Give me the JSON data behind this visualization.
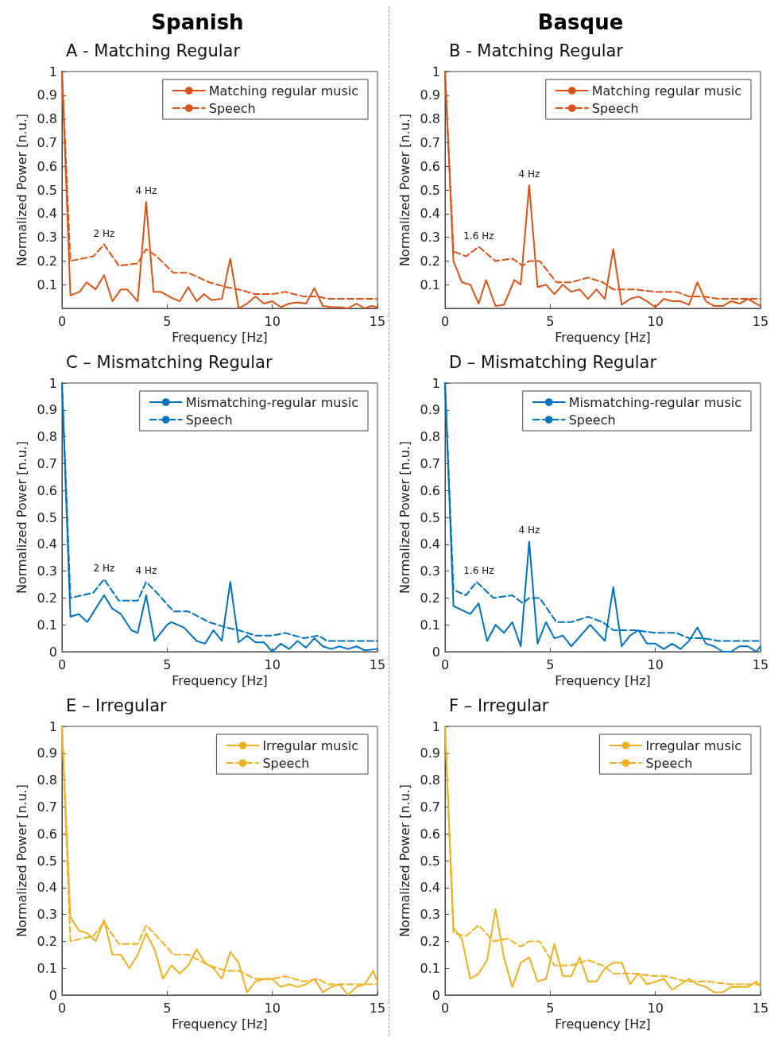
{
  "chart_data": [
    {
      "type": "line",
      "title": "A - Matching Regular",
      "xlabel": "Frequency [Hz]",
      "ylabel": "Normalized Power [n.u.]",
      "annotations": [
        "Spanish",
        {
          "text": "2 Hz",
          "x": 2,
          "y": 0.27
        },
        {
          "text": "4 Hz",
          "x": 4,
          "y": 0.45
        }
      ],
      "xlim": [
        0,
        15
      ],
      "ylim": [
        0,
        1
      ],
      "xticks": [
        0,
        5,
        10,
        15
      ],
      "yticks": [
        0.1,
        0.2,
        0.3,
        0.4,
        0.5,
        0.6,
        0.7,
        0.8,
        0.9,
        1
      ],
      "grid": false,
      "legend": "top right",
      "marker": "none",
      "series": [
        {
          "name": "Matching regular music",
          "color": "#d95319",
          "line_style": "solid",
          "x": [
            0,
            0.4,
            0.84,
            1.17,
            1.6,
            2,
            2.4,
            2.8,
            3.1,
            3.6,
            4,
            4.35,
            4.7,
            5.2,
            5.6,
            6,
            6.4,
            6.75,
            7.1,
            7.6,
            8,
            8.4,
            8.8,
            9.2,
            9.6,
            10,
            10.4,
            10.8,
            11.2,
            11.6,
            12,
            12.4,
            12.85,
            13.2,
            13.6,
            14,
            14.4,
            14.7,
            15
          ],
          "values": [
            1,
            0.055,
            0.07,
            0.11,
            0.08,
            0.14,
            0.03,
            0.08,
            0.08,
            0.03,
            0.45,
            0.07,
            0.07,
            0.045,
            0.03,
            0.09,
            0.03,
            0.06,
            0.035,
            0.04,
            0.21,
            0,
            0.02,
            0.05,
            0.02,
            0.03,
            0.005,
            0.02,
            0.025,
            0.02,
            0.085,
            0.01,
            0.005,
            0.005,
            0,
            0.02,
            0,
            0.01,
            0.005
          ]
        },
        {
          "name": "Speech",
          "color": "#d95319",
          "line_style": "dashed",
          "x": [
            0,
            0.4,
            1.5,
            2,
            2.7,
            3.6,
            4,
            4.5,
            5.3,
            6,
            7,
            7.8,
            8.4,
            9.2,
            10,
            10.6,
            11.5,
            12.2,
            12.6,
            15
          ],
          "values": [
            1,
            0.2,
            0.22,
            0.27,
            0.18,
            0.19,
            0.25,
            0.22,
            0.15,
            0.15,
            0.11,
            0.09,
            0.08,
            0.06,
            0.06,
            0.07,
            0.05,
            0.05,
            0.04,
            0.04
          ]
        }
      ]
    },
    {
      "type": "line",
      "title": "B - Matching Regular",
      "xlabel": "Frequency [Hz]",
      "ylabel": "Normalized Power [n.u.]",
      "annotations": [
        "Basque",
        {
          "text": "1.6 Hz",
          "x": 1.6,
          "y": 0.26
        },
        {
          "text": "4 Hz",
          "x": 4,
          "y": 0.52
        }
      ],
      "xlim": [
        0,
        15
      ],
      "ylim": [
        0,
        1
      ],
      "xticks": [
        0,
        5,
        10,
        15
      ],
      "yticks": [
        0.1,
        0.2,
        0.3,
        0.4,
        0.5,
        0.6,
        0.7,
        0.8,
        0.9,
        1
      ],
      "grid": false,
      "legend": "top right",
      "marker": "none",
      "series": [
        {
          "name": "Matching regular music",
          "color": "#d95319",
          "line_style": "solid",
          "x": [
            0,
            0.4,
            0.8,
            1.2,
            1.6,
            1.95,
            2.4,
            2.8,
            3.3,
            3.6,
            4,
            4.4,
            4.8,
            5.2,
            5.6,
            6,
            6.4,
            6.8,
            7.2,
            7.6,
            8,
            8.4,
            8.8,
            9.2,
            9.6,
            10,
            10.4,
            10.8,
            11.2,
            11.6,
            12,
            12.4,
            12.8,
            13.2,
            13.6,
            14,
            14.4,
            15
          ],
          "values": [
            1,
            0.2,
            0.11,
            0.1,
            0.02,
            0.12,
            0.01,
            0.015,
            0.12,
            0.1,
            0.52,
            0.09,
            0.1,
            0.06,
            0.1,
            0.07,
            0.08,
            0.04,
            0.08,
            0.04,
            0.25,
            0.015,
            0.04,
            0.05,
            0.03,
            0.005,
            0.04,
            0.03,
            0.03,
            0.015,
            0.11,
            0.03,
            0.01,
            0.01,
            0.03,
            0.02,
            0.04,
            0.01
          ]
        },
        {
          "name": "Speech",
          "color": "#d95319",
          "line_style": "dashed",
          "x": [
            0,
            0.4,
            1,
            1.6,
            2.4,
            3.2,
            3.7,
            4,
            4.5,
            5.3,
            6,
            6.8,
            7.5,
            8,
            9,
            10,
            11,
            11.6,
            12.3,
            13,
            14,
            15
          ],
          "values": [
            1,
            0.24,
            0.22,
            0.26,
            0.2,
            0.21,
            0.18,
            0.2,
            0.2,
            0.11,
            0.11,
            0.13,
            0.11,
            0.08,
            0.08,
            0.07,
            0.07,
            0.05,
            0.05,
            0.04,
            0.04,
            0.04
          ]
        }
      ]
    },
    {
      "type": "line",
      "title": "C – Mismatching Regular",
      "xlabel": "Frequency [Hz]",
      "ylabel": "Normalized Power [n.u.]",
      "annotations": [
        {
          "text": "2 Hz",
          "x": 2,
          "y": 0.27
        },
        {
          "text": "4 Hz",
          "x": 4,
          "y": 0.26
        }
      ],
      "xlim": [
        0,
        15
      ],
      "ylim": [
        0,
        1
      ],
      "xticks": [
        0,
        5,
        10,
        15
      ],
      "yticks": [
        0,
        0.1,
        0.2,
        0.3,
        0.4,
        0.5,
        0.6,
        0.7,
        0.8,
        0.9,
        1
      ],
      "grid": false,
      "legend": "top right",
      "marker": "none",
      "series": [
        {
          "name": "Mismatching-regular music",
          "color": "#0072bd",
          "line_style": "solid",
          "x": [
            0,
            0.4,
            0.8,
            1.2,
            2,
            2.4,
            2.8,
            3.3,
            3.6,
            4,
            4.4,
            5,
            5.2,
            5.8,
            6.4,
            6.8,
            7.2,
            7.6,
            8,
            8.4,
            8.8,
            9.2,
            9.6,
            10,
            10.4,
            10.8,
            11.2,
            11.6,
            12,
            12.4,
            12.8,
            13.2,
            13.6,
            14,
            14.4,
            15
          ],
          "values": [
            1,
            0.13,
            0.14,
            0.11,
            0.21,
            0.16,
            0.14,
            0.08,
            0.07,
            0.21,
            0.04,
            0.1,
            0.11,
            0.09,
            0.04,
            0.03,
            0.08,
            0.04,
            0.26,
            0.035,
            0.06,
            0.035,
            0.035,
            0,
            0.03,
            0.01,
            0.04,
            0.015,
            0.05,
            0.02,
            0.01,
            0.02,
            0.01,
            0.02,
            0.005,
            0.01
          ]
        },
        {
          "name": "Speech",
          "color": "#0072bd",
          "line_style": "dashed",
          "x": [
            0,
            0.4,
            1.5,
            2,
            2.7,
            3.6,
            4,
            4.5,
            5.3,
            6,
            7,
            7.8,
            8.4,
            9.2,
            10,
            10.6,
            11.5,
            12.2,
            12.6,
            15
          ],
          "values": [
            1,
            0.2,
            0.22,
            0.27,
            0.19,
            0.19,
            0.26,
            0.22,
            0.15,
            0.15,
            0.11,
            0.09,
            0.08,
            0.06,
            0.06,
            0.07,
            0.05,
            0.06,
            0.04,
            0.04
          ]
        }
      ]
    },
    {
      "type": "line",
      "title": "D – Mismatching Regular",
      "xlabel": "Frequency [Hz]",
      "ylabel": "Normalized Power [n.u.]",
      "annotations": [
        {
          "text": "1.6 Hz",
          "x": 1.6,
          "y": 0.26
        },
        {
          "text": "4 Hz",
          "x": 4,
          "y": 0.41
        }
      ],
      "xlim": [
        0,
        15
      ],
      "ylim": [
        0,
        1
      ],
      "xticks": [
        0,
        5,
        10,
        15
      ],
      "yticks": [
        0,
        0.1,
        0.2,
        0.3,
        0.4,
        0.5,
        0.6,
        0.7,
        0.8,
        0.9,
        1
      ],
      "grid": false,
      "legend": "top right",
      "marker": "none",
      "series": [
        {
          "name": "Mismatching-regular music",
          "color": "#0072bd",
          "line_style": "solid",
          "x": [
            0,
            0.4,
            1.2,
            1.6,
            2,
            2.4,
            2.8,
            3.2,
            3.6,
            4,
            4.4,
            4.8,
            5.2,
            5.6,
            6,
            6.9,
            7.6,
            8,
            8.4,
            8.8,
            9.2,
            9.6,
            10,
            10.4,
            10.8,
            11.2,
            11.6,
            12,
            12.4,
            12.8,
            13.2,
            13.6,
            14,
            14.4,
            14.8,
            15
          ],
          "values": [
            1,
            0.17,
            0.14,
            0.18,
            0.04,
            0.1,
            0.07,
            0.11,
            0.02,
            0.41,
            0.03,
            0.11,
            0.05,
            0.06,
            0.02,
            0.1,
            0.04,
            0.24,
            0.02,
            0.06,
            0.08,
            0.03,
            0.03,
            0.01,
            0.03,
            0.01,
            0.04,
            0.09,
            0.03,
            0.02,
            0,
            0,
            0.02,
            0.02,
            0,
            0.02
          ]
        },
        {
          "name": "Speech",
          "color": "#0072bd",
          "line_style": "dashed",
          "x": [
            0,
            0.4,
            1,
            1.5,
            2.3,
            3.2,
            3.7,
            4,
            4.5,
            5.3,
            6,
            6.8,
            7.5,
            8,
            9,
            10,
            11,
            11.6,
            12.3,
            13,
            14,
            15
          ],
          "values": [
            1,
            0.23,
            0.21,
            0.26,
            0.2,
            0.21,
            0.18,
            0.2,
            0.2,
            0.11,
            0.11,
            0.13,
            0.11,
            0.08,
            0.08,
            0.07,
            0.07,
            0.05,
            0.05,
            0.04,
            0.04,
            0.04
          ]
        }
      ]
    },
    {
      "type": "line",
      "title": "E – Irregular",
      "xlabel": "Frequency [Hz]",
      "ylabel": "Normalized Power [n.u.]",
      "xlim": [
        0,
        15
      ],
      "ylim": [
        0,
        1
      ],
      "xticks": [
        0,
        5,
        10,
        15
      ],
      "yticks": [
        0,
        0.1,
        0.2,
        0.3,
        0.4,
        0.5,
        0.6,
        0.7,
        0.8,
        0.9,
        1
      ],
      "grid": false,
      "legend": "top right",
      "marker": "none",
      "series": [
        {
          "name": "Irregular music",
          "color": "#edb120",
          "line_style": "solid",
          "x": [
            0,
            0.4,
            0.8,
            1.2,
            1.6,
            2,
            2.4,
            2.8,
            3.2,
            3.6,
            4,
            4.4,
            4.8,
            5.2,
            5.6,
            6,
            6.4,
            6.8,
            7.2,
            7.6,
            8,
            8.4,
            8.8,
            9.2,
            9.6,
            10,
            10.4,
            10.8,
            11.2,
            11.6,
            12,
            12.4,
            12.8,
            13.2,
            13.6,
            14,
            14.4,
            14.8,
            15
          ],
          "values": [
            1,
            0.29,
            0.24,
            0.23,
            0.2,
            0.28,
            0.15,
            0.15,
            0.1,
            0.15,
            0.23,
            0.17,
            0.06,
            0.11,
            0.08,
            0.11,
            0.17,
            0.12,
            0.1,
            0.06,
            0.16,
            0.12,
            0.01,
            0.05,
            0.06,
            0.06,
            0.03,
            0.04,
            0.03,
            0.04,
            0.06,
            0.01,
            0.03,
            0.04,
            0,
            0.03,
            0.04,
            0.09,
            0.05
          ]
        },
        {
          "name": "Speech",
          "color": "#edb120",
          "line_style": "dashed",
          "x": [
            0,
            0.4,
            1.5,
            2,
            2.7,
            3.6,
            4,
            4.5,
            5.3,
            6,
            7,
            7.8,
            8.4,
            9.2,
            10,
            10.6,
            11.5,
            12.2,
            12.6,
            15
          ],
          "values": [
            1,
            0.2,
            0.22,
            0.27,
            0.19,
            0.19,
            0.26,
            0.22,
            0.15,
            0.15,
            0.11,
            0.09,
            0.09,
            0.06,
            0.06,
            0.07,
            0.05,
            0.06,
            0.04,
            0.04
          ]
        }
      ]
    },
    {
      "type": "line",
      "title": "F – Irregular",
      "xlabel": "Frequency [Hz]",
      "ylabel": "Normalized Power [n.u.]",
      "xlim": [
        0,
        15
      ],
      "ylim": [
        0,
        1
      ],
      "xticks": [
        0,
        5,
        10,
        15
      ],
      "yticks": [
        0,
        0.1,
        0.2,
        0.3,
        0.4,
        0.5,
        0.6,
        0.7,
        0.8,
        0.9,
        1
      ],
      "grid": false,
      "legend": "top right",
      "marker": "none",
      "series": [
        {
          "name": "Irregular music",
          "color": "#edb120",
          "line_style": "solid",
          "x": [
            0,
            0.4,
            0.8,
            1.2,
            1.6,
            2,
            2.4,
            2.8,
            3.2,
            3.6,
            4,
            4.4,
            4.8,
            5.2,
            5.6,
            6,
            6.4,
            6.8,
            7.2,
            7.6,
            8,
            8.4,
            8.8,
            9.2,
            9.6,
            10,
            10.4,
            10.8,
            11.2,
            11.6,
            12,
            12.4,
            12.8,
            13.2,
            13.6,
            14,
            14.4,
            14.8,
            15
          ],
          "values": [
            1,
            0.25,
            0.21,
            0.06,
            0.08,
            0.13,
            0.32,
            0.14,
            0.03,
            0.12,
            0.14,
            0.05,
            0.06,
            0.19,
            0.07,
            0.07,
            0.14,
            0.05,
            0.05,
            0.1,
            0.12,
            0.12,
            0.04,
            0.08,
            0.04,
            0.05,
            0.06,
            0.02,
            0.04,
            0.06,
            0.04,
            0.03,
            0.01,
            0.01,
            0.03,
            0.03,
            0.03,
            0.05,
            0.03
          ]
        },
        {
          "name": "Speech",
          "color": "#edb120",
          "line_style": "dashed",
          "x": [
            0,
            0.4,
            1,
            1.6,
            2.3,
            3,
            3.6,
            4,
            4.5,
            5.2,
            6,
            6.8,
            7.5,
            8,
            9,
            10,
            10.5,
            11.5,
            12.5,
            13.5,
            15
          ],
          "values": [
            1,
            0.23,
            0.22,
            0.26,
            0.2,
            0.21,
            0.18,
            0.2,
            0.2,
            0.11,
            0.11,
            0.13,
            0.11,
            0.08,
            0.08,
            0.07,
            0.07,
            0.05,
            0.05,
            0.04,
            0.04
          ]
        }
      ]
    }
  ]
}
